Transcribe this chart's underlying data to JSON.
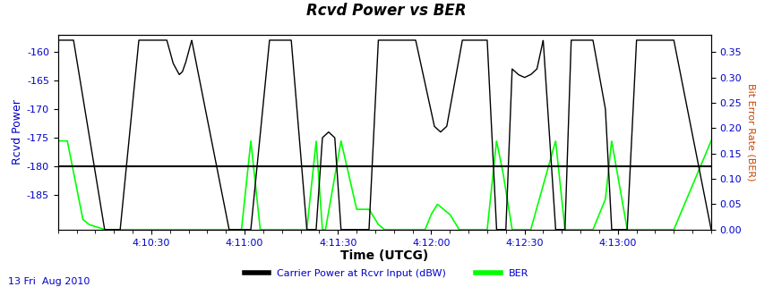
{
  "title": "Rcvd Power vs BER",
  "xlabel": "Time (UTCG)",
  "ylabel_left": "Rcvd Power",
  "ylabel_right": "Bit Error Rate (BER)",
  "date_label": "13 Fri  Aug 2010",
  "xlim": [
    0,
    210
  ],
  "ylim_left": [
    -191,
    -157
  ],
  "ylim_right": [
    0,
    0.385
  ],
  "yticks_left": [
    -185,
    -180,
    -175,
    -170,
    -165,
    -160
  ],
  "yticks_right": [
    0.0,
    0.05,
    0.1,
    0.15,
    0.2,
    0.25,
    0.3,
    0.35
  ],
  "xtick_labels": [
    "4:10:30",
    "4:11:00",
    "4:11:30",
    "4:12:00",
    "4:12:30",
    "4:13:00"
  ],
  "xtick_positions": [
    30,
    60,
    90,
    120,
    150,
    180
  ],
  "threshold_y": -180,
  "legend_label_black": "Carrier Power at Rcvr Input (dBW)",
  "legend_label_green": "BER",
  "bg_color": "#ffffff",
  "plot_bg_color": "#ffffff",
  "black_line_color": "#000000",
  "green_line_color": "#00ff00",
  "threshold_color": "#000000",
  "label_color_left": "#0000cc",
  "label_color_right": "#cc4400",
  "date_color": "#0000cc",
  "tick_label_color": "#0000cc",
  "xlabel_color": "#000000",
  "title_color": "#000000",
  "axes_color": "#000000",
  "black_power_keypoints": [
    [
      0,
      -158
    ],
    [
      5,
      -158
    ],
    [
      15,
      -191
    ],
    [
      20,
      -191
    ],
    [
      26,
      -158
    ],
    [
      35,
      -158
    ],
    [
      37,
      -162
    ],
    [
      38,
      -163
    ],
    [
      39,
      -164
    ],
    [
      40,
      -163.5
    ],
    [
      41,
      -162
    ],
    [
      43,
      -158
    ],
    [
      55,
      -191
    ],
    [
      62,
      -191
    ],
    [
      68,
      -158
    ],
    [
      75,
      -158
    ],
    [
      80,
      -191
    ],
    [
      83,
      -191
    ],
    [
      85,
      -175
    ],
    [
      87,
      -174
    ],
    [
      89,
      -175
    ],
    [
      91,
      -191
    ],
    [
      100,
      -191
    ],
    [
      103,
      -158
    ],
    [
      115,
      -158
    ],
    [
      121,
      -173
    ],
    [
      122,
      -173.5
    ],
    [
      123,
      -174
    ],
    [
      124,
      -173.5
    ],
    [
      125,
      -173
    ],
    [
      130,
      -158
    ],
    [
      138,
      -158
    ],
    [
      141,
      -191
    ],
    [
      144,
      -191
    ],
    [
      146,
      -163
    ],
    [
      148,
      -164
    ],
    [
      150,
      -164.5
    ],
    [
      152,
      -164
    ],
    [
      154,
      -163
    ],
    [
      156,
      -158
    ],
    [
      160,
      -191
    ],
    [
      163,
      -191
    ],
    [
      165,
      -158
    ],
    [
      172,
      -158
    ],
    [
      176,
      -170
    ],
    [
      178,
      -191
    ],
    [
      183,
      -191
    ],
    [
      186,
      -158
    ],
    [
      198,
      -158
    ],
    [
      210,
      -191
    ]
  ],
  "green_ber_keypoints": [
    [
      0,
      0.175
    ],
    [
      3,
      0.175
    ],
    [
      8,
      0.02
    ],
    [
      10,
      0.01
    ],
    [
      15,
      0.0
    ],
    [
      20,
      0.0
    ],
    [
      55,
      0.0
    ],
    [
      59,
      0.0
    ],
    [
      62,
      0.175
    ],
    [
      65,
      0.0
    ],
    [
      68,
      0.0
    ],
    [
      80,
      0.0
    ],
    [
      83,
      0.175
    ],
    [
      85,
      0.0
    ],
    [
      86,
      0.0
    ],
    [
      91,
      0.175
    ],
    [
      96,
      0.04
    ],
    [
      100,
      0.04
    ],
    [
      103,
      0.01
    ],
    [
      105,
      0.0
    ],
    [
      110,
      0.0
    ],
    [
      115,
      0.0
    ],
    [
      118,
      0.0
    ],
    [
      120,
      0.03
    ],
    [
      122,
      0.05
    ],
    [
      124,
      0.04
    ],
    [
      126,
      0.03
    ],
    [
      129,
      0.0
    ],
    [
      138,
      0.0
    ],
    [
      141,
      0.175
    ],
    [
      143,
      0.115
    ],
    [
      146,
      0.0
    ],
    [
      148,
      0.0
    ],
    [
      152,
      0.0
    ],
    [
      160,
      0.175
    ],
    [
      163,
      0.0
    ],
    [
      172,
      0.0
    ],
    [
      176,
      0.06
    ],
    [
      178,
      0.175
    ],
    [
      183,
      0.0
    ],
    [
      198,
      0.0
    ],
    [
      210,
      0.175
    ]
  ]
}
